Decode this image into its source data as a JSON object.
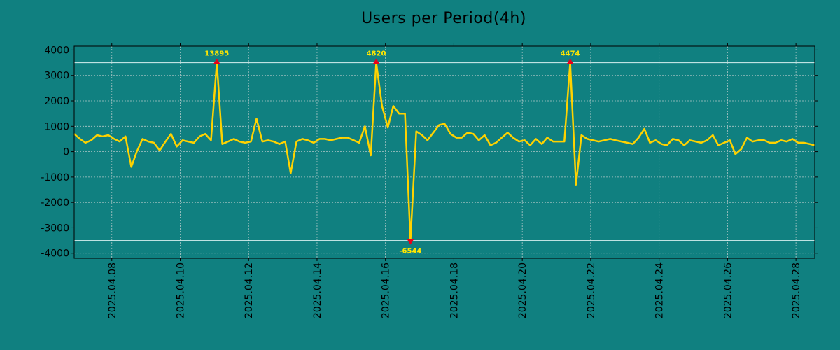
{
  "chart_data": {
    "type": "line",
    "title": "Users per Period(4h)",
    "xlabel": "",
    "ylabel": "",
    "ylim": [
      -4200,
      4150
    ],
    "y_ticks": [
      4000,
      3000,
      2000,
      1000,
      0,
      -1000,
      -2000,
      -3000,
      -4000
    ],
    "y_tick_labels": [
      "4000",
      "3000",
      "2000",
      "1000",
      "0",
      "-1000",
      "-2000",
      "-3000",
      "-4000"
    ],
    "x_ticks": [
      "2025.04.08",
      "2025.04.10",
      "2025.04.12",
      "2025.04.14",
      "2025.04.16",
      "2025.04.18",
      "2025.04.20",
      "2025.04.22",
      "2025.04.24",
      "2025.04.26",
      "2025.04.28"
    ],
    "x_tick_days": [
      8,
      10,
      12,
      14,
      16,
      18,
      20,
      22,
      24,
      26,
      28
    ],
    "xlim_days": [
      6.9,
      28.55
    ],
    "clip_lines": [
      3500,
      -3500
    ],
    "colors": {
      "line": "#FFD200",
      "grid": "#B0C8C8",
      "clip_line": "#D8F0F0",
      "marker": "#E8001C",
      "annotation": "#FFE600"
    },
    "series": [
      {
        "name": "users",
        "x_days": [
          6.9,
          7.07,
          7.23,
          7.4,
          7.57,
          7.73,
          7.9,
          8.07,
          8.23,
          8.4,
          8.57,
          8.73,
          8.9,
          9.07,
          9.23,
          9.4,
          9.57,
          9.73,
          9.9,
          10.07,
          10.23,
          10.4,
          10.57,
          10.73,
          10.9,
          11.07,
          11.23,
          11.4,
          11.57,
          11.73,
          11.9,
          12.07,
          12.23,
          12.4,
          12.57,
          12.73,
          12.9,
          13.07,
          13.23,
          13.4,
          13.57,
          13.73,
          13.9,
          14.07,
          14.23,
          14.4,
          14.57,
          14.73,
          14.9,
          15.07,
          15.23,
          15.4,
          15.57,
          15.73,
          15.9,
          16.07,
          16.23,
          16.4,
          16.57,
          16.73,
          16.9,
          17.07,
          17.23,
          17.4,
          17.57,
          17.73,
          17.9,
          18.07,
          18.23,
          18.4,
          18.57,
          18.73,
          18.9,
          19.07,
          19.23,
          19.4,
          19.57,
          19.73,
          19.9,
          20.07,
          20.23,
          20.4,
          20.57,
          20.73,
          20.9,
          21.07,
          21.23,
          21.4,
          21.57,
          21.73,
          21.9,
          22.07,
          22.23,
          22.4,
          22.57,
          22.73,
          22.9,
          23.07,
          23.23,
          23.4,
          23.57,
          23.73,
          23.9,
          24.07,
          24.23,
          24.4,
          24.57,
          24.73,
          24.9,
          25.07,
          25.23,
          25.4,
          25.57,
          25.73,
          25.9,
          26.07,
          26.23,
          26.4,
          26.57,
          26.73,
          26.9,
          27.07,
          27.23,
          27.4,
          27.57,
          27.73,
          27.9,
          28.07,
          28.23,
          28.4,
          28.55
        ],
        "values": [
          700,
          500,
          350,
          450,
          650,
          600,
          650,
          500,
          400,
          600,
          -600,
          0,
          500,
          400,
          350,
          50,
          400,
          700,
          200,
          450,
          400,
          350,
          600,
          700,
          450,
          3500,
          300,
          400,
          500,
          400,
          350,
          400,
          1300,
          400,
          450,
          400,
          300,
          400,
          -850,
          400,
          500,
          450,
          350,
          500,
          500,
          450,
          500,
          550,
          550,
          450,
          350,
          1000,
          -150,
          3500,
          1800,
          950,
          1800,
          1500,
          1500,
          -3500,
          800,
          650,
          450,
          750,
          1050,
          1100,
          700,
          550,
          550,
          750,
          700,
          450,
          650,
          250,
          350,
          550,
          750,
          550,
          400,
          450,
          250,
          500,
          300,
          550,
          400,
          400,
          400,
          3500,
          -1300,
          650,
          500,
          450,
          400,
          450,
          500,
          450,
          400,
          350,
          300,
          550,
          900,
          350,
          450,
          300,
          250,
          500,
          450,
          250,
          450,
          400,
          350,
          450,
          650,
          250,
          350,
          450,
          -100,
          100,
          550,
          400,
          450,
          450,
          350,
          350,
          450,
          400,
          500,
          350,
          350,
          300,
          250
        ]
      }
    ],
    "annotations": [
      {
        "label": "13895",
        "x_day": 11.07,
        "y": 3500,
        "direction": "up"
      },
      {
        "label": "4820",
        "x_day": 15.73,
        "y": 3500,
        "direction": "up"
      },
      {
        "label": "-6544",
        "x_day": 16.73,
        "y": -3500,
        "direction": "down"
      },
      {
        "label": "4474",
        "x_day": 21.4,
        "y": 3500,
        "direction": "up"
      }
    ]
  }
}
